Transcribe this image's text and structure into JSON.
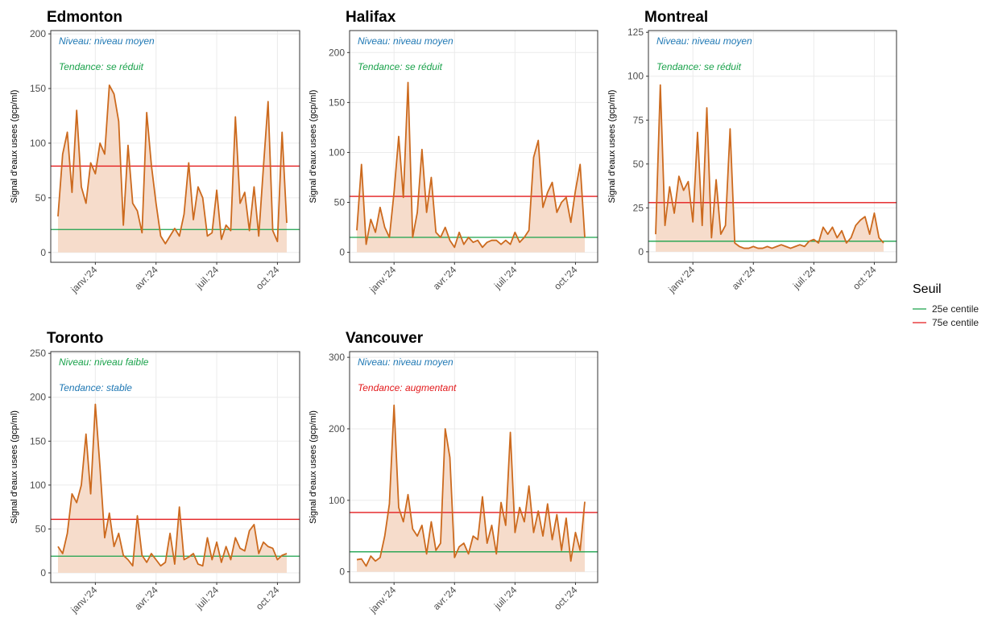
{
  "chart_data": [
    {
      "type": "line",
      "title": "Edmonton",
      "ylabel": "Signal d'eaux usees (gcp/ml)",
      "annotations": [
        {
          "text": "Niveau: niveau moyen",
          "color": "#1f78b4"
        },
        {
          "text": "Tendance: se réduit",
          "color": "#1aa24b"
        }
      ],
      "categories": [
        null,
        null,
        null,
        null,
        null,
        null,
        null,
        null,
        "janv.'24",
        null,
        null,
        null,
        null,
        null,
        null,
        null,
        null,
        null,
        null,
        null,
        null,
        "avr.'24",
        null,
        null,
        null,
        null,
        null,
        null,
        null,
        null,
        null,
        null,
        null,
        null,
        "juil.'24",
        null,
        null,
        null,
        null,
        null,
        null,
        null,
        null,
        null,
        null,
        null,
        null,
        "oct.'24",
        null,
        null
      ],
      "values": [
        33,
        90,
        110,
        55,
        130,
        60,
        45,
        82,
        72,
        100,
        90,
        153,
        145,
        120,
        25,
        98,
        45,
        38,
        18,
        128,
        80,
        45,
        15,
        8,
        15,
        22,
        15,
        35,
        82,
        30,
        60,
        50,
        15,
        18,
        57,
        12,
        25,
        20,
        124,
        45,
        55,
        20,
        60,
        15,
        78,
        138,
        20,
        10,
        110,
        27
      ],
      "color": "#cc6a1e",
      "fill": "#f6dccb",
      "thresholds": [
        21,
        79
      ],
      "ylim": [
        -9,
        203
      ],
      "yticks": [
        0,
        50,
        100,
        150,
        200
      ],
      "grid": true
    },
    {
      "type": "line",
      "title": "Halifax",
      "ylabel": "Signal d'eaux usees (gcp/ml)",
      "annotations": [
        {
          "text": "Niveau: niveau moyen",
          "color": "#1f78b4"
        },
        {
          "text": "Tendance: se réduit",
          "color": "#1aa24b"
        }
      ],
      "categories": [
        null,
        null,
        null,
        null,
        null,
        null,
        null,
        null,
        "janv.'24",
        null,
        null,
        null,
        null,
        null,
        null,
        null,
        null,
        null,
        null,
        null,
        null,
        "avr.'24",
        null,
        null,
        null,
        null,
        null,
        null,
        null,
        null,
        null,
        null,
        null,
        null,
        "juil.'24",
        null,
        null,
        null,
        null,
        null,
        null,
        null,
        null,
        null,
        null,
        null,
        null,
        "oct.'24",
        null,
        null
      ],
      "values": [
        22,
        88,
        8,
        33,
        20,
        45,
        25,
        15,
        60,
        116,
        55,
        170,
        15,
        40,
        103,
        40,
        75,
        20,
        15,
        25,
        12,
        5,
        20,
        8,
        15,
        10,
        12,
        5,
        10,
        12,
        12,
        8,
        12,
        8,
        20,
        10,
        15,
        22,
        95,
        112,
        45,
        60,
        70,
        40,
        50,
        55,
        30,
        62,
        88,
        15
      ],
      "color": "#cc6a1e",
      "fill": "#f6dccb",
      "thresholds": [
        15,
        56
      ],
      "ylim": [
        -10,
        222
      ],
      "yticks": [
        0,
        50,
        100,
        150,
        200
      ],
      "grid": true
    },
    {
      "type": "line",
      "title": "Montreal",
      "ylabel": "Signal d'eaux usees (gcp/ml)",
      "annotations": [
        {
          "text": "Niveau: niveau moyen",
          "color": "#1f78b4"
        },
        {
          "text": "Tendance: se réduit",
          "color": "#1aa24b"
        }
      ],
      "categories": [
        null,
        null,
        null,
        null,
        null,
        null,
        null,
        null,
        "janv.'24",
        null,
        null,
        null,
        null,
        null,
        null,
        null,
        null,
        null,
        null,
        null,
        null,
        "avr.'24",
        null,
        null,
        null,
        null,
        null,
        null,
        null,
        null,
        null,
        null,
        null,
        null,
        "juil.'24",
        null,
        null,
        null,
        null,
        null,
        null,
        null,
        null,
        null,
        null,
        null,
        null,
        "oct.'24",
        null,
        null
      ],
      "values": [
        10,
        95,
        15,
        37,
        22,
        43,
        35,
        40,
        17,
        68,
        15,
        82,
        8,
        41,
        10,
        15,
        70,
        5,
        3,
        2,
        2,
        3,
        2,
        2,
        3,
        2,
        3,
        4,
        3,
        2,
        3,
        4,
        3,
        6,
        7,
        5,
        14,
        10,
        14,
        8,
        12,
        5,
        8,
        15,
        18,
        20,
        10,
        22,
        8,
        5
      ],
      "color": "#cc6a1e",
      "fill": "#f6dccb",
      "thresholds": [
        6,
        28
      ],
      "ylim": [
        -6,
        126
      ],
      "yticks": [
        0,
        25,
        50,
        75,
        100,
        125
      ],
      "grid": true
    },
    {
      "type": "line",
      "title": "Toronto",
      "ylabel": "Signal d'eaux usees (gcp/ml)",
      "annotations": [
        {
          "text": "Niveau: niveau faible",
          "color": "#1aa24b"
        },
        {
          "text": "Tendance: stable",
          "color": "#1f78b4"
        }
      ],
      "categories": [
        null,
        null,
        null,
        null,
        null,
        null,
        null,
        null,
        "janv.'24",
        null,
        null,
        null,
        null,
        null,
        null,
        null,
        null,
        null,
        null,
        null,
        null,
        "avr.'24",
        null,
        null,
        null,
        null,
        null,
        null,
        null,
        null,
        null,
        null,
        null,
        null,
        "juil.'24",
        null,
        null,
        null,
        null,
        null,
        null,
        null,
        null,
        null,
        null,
        null,
        null,
        "oct.'24",
        null,
        null
      ],
      "values": [
        30,
        22,
        45,
        90,
        80,
        100,
        158,
        90,
        192,
        120,
        40,
        68,
        30,
        45,
        20,
        15,
        8,
        65,
        20,
        12,
        22,
        15,
        8,
        12,
        45,
        10,
        75,
        15,
        18,
        22,
        10,
        8,
        40,
        15,
        35,
        12,
        30,
        15,
        40,
        28,
        25,
        48,
        55,
        22,
        35,
        30,
        28,
        15,
        20,
        22
      ],
      "color": "#cc6a1e",
      "fill": "#f6dccb",
      "thresholds": [
        19,
        61
      ],
      "ylim": [
        -11,
        252
      ],
      "yticks": [
        0,
        50,
        100,
        150,
        200,
        250
      ],
      "grid": true
    },
    {
      "type": "line",
      "title": "Vancouver",
      "ylabel": "Signal d'eaux usees (gcp/ml)",
      "annotations": [
        {
          "text": "Niveau: niveau moyen",
          "color": "#1f78b4"
        },
        {
          "text": "Tendance: augmentant",
          "color": "#e31a1c"
        }
      ],
      "categories": [
        null,
        null,
        null,
        null,
        null,
        null,
        null,
        null,
        "janv.'24",
        null,
        null,
        null,
        null,
        null,
        null,
        null,
        null,
        null,
        null,
        null,
        null,
        "avr.'24",
        null,
        null,
        null,
        null,
        null,
        null,
        null,
        null,
        null,
        null,
        null,
        null,
        "juil.'24",
        null,
        null,
        null,
        null,
        null,
        null,
        null,
        null,
        null,
        null,
        null,
        null,
        "oct.'24",
        null,
        null
      ],
      "values": [
        17,
        18,
        8,
        22,
        15,
        20,
        50,
        95,
        233,
        90,
        70,
        108,
        60,
        50,
        65,
        25,
        70,
        30,
        40,
        200,
        160,
        20,
        35,
        40,
        25,
        50,
        45,
        105,
        40,
        65,
        25,
        97,
        65,
        195,
        55,
        90,
        70,
        120,
        55,
        85,
        50,
        95,
        45,
        80,
        30,
        75,
        15,
        55,
        30,
        98
      ],
      "color": "#cc6a1e",
      "fill": "#f6dccb",
      "thresholds": [
        28,
        83
      ],
      "ylim": [
        -15,
        308
      ],
      "yticks": [
        0,
        100,
        200,
        300
      ],
      "grid": true
    }
  ],
  "legend": {
    "title": "Seuil",
    "items": [
      {
        "name": "25e centile",
        "color": "#1aa24b"
      },
      {
        "name": "75e centile",
        "color": "#e31a1c"
      }
    ]
  }
}
